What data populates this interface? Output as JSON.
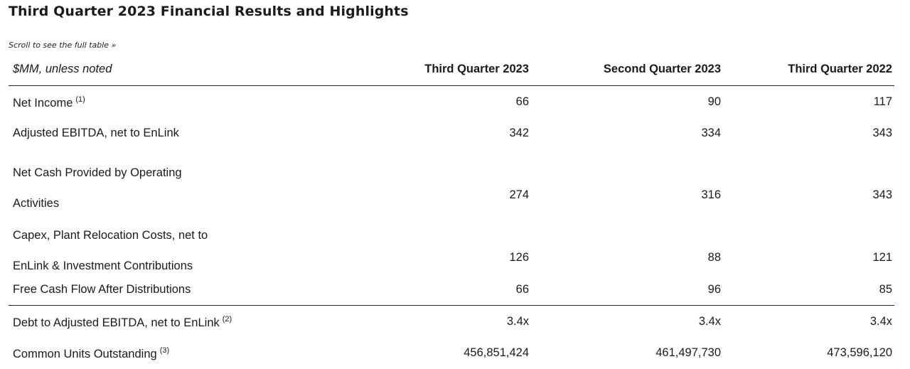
{
  "title": "Third Quarter 2023 Financial Results and Highlights",
  "scroll_hint": "Scroll to see the full table »",
  "table": {
    "headers": [
      "$MM, unless noted",
      "Third Quarter 2023",
      "Second Quarter 2023",
      "Third Quarter 2022"
    ],
    "rows": [
      {
        "label": "Net Income",
        "note": "(1)",
        "values": [
          "66",
          "90",
          "117"
        ]
      },
      {
        "label": "Adjusted EBITDA, net to EnLink",
        "note": "",
        "values": [
          "342",
          "334",
          "343"
        ]
      },
      {
        "label": "Net Cash Provided by Operating Activities",
        "note": "",
        "values": [
          "274",
          "316",
          "343"
        ]
      },
      {
        "label": "Capex, Plant Relocation Costs, net to EnLink & Investment Contributions",
        "note": "",
        "values": [
          "126",
          "88",
          "121"
        ]
      },
      {
        "label": "Free Cash Flow After Distributions",
        "note": "",
        "values": [
          "66",
          "96",
          "85"
        ]
      },
      {
        "label": "Debt to Adjusted EBITDA, net to EnLink",
        "note": "(2)",
        "values": [
          "3.4x",
          "3.4x",
          "3.4x"
        ]
      },
      {
        "label": "Common Units Outstanding",
        "note": "(3)",
        "values": [
          "456,851,424",
          "461,497,730",
          "473,596,120"
        ]
      }
    ]
  }
}
